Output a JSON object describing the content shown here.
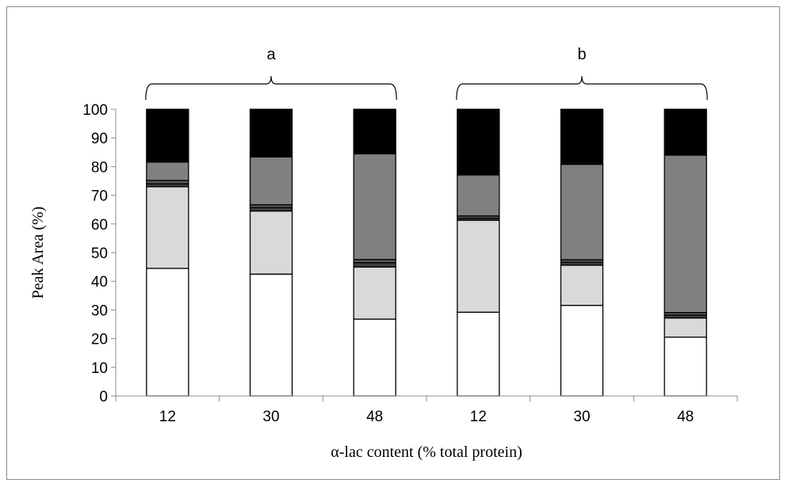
{
  "chart_data": {
    "type": "bar",
    "stacked": true,
    "categories": [
      "12",
      "30",
      "48",
      "12",
      "30",
      "48"
    ],
    "groups": [
      {
        "label": "a",
        "category_indices": [
          0,
          1,
          2
        ]
      },
      {
        "label": "b",
        "category_indices": [
          3,
          4,
          5
        ]
      }
    ],
    "series": [
      {
        "color": "#ffffff",
        "values": [
          44.5,
          42.5,
          26.8,
          29.2,
          31.6,
          20.5
        ]
      },
      {
        "color": "#d9d9d9",
        "values": [
          28.5,
          22.0,
          18.2,
          32.1,
          14.0,
          6.7
        ]
      },
      {
        "color": "#404040",
        "values": [
          1.0,
          1.2,
          1.5,
          0.7,
          1.0,
          1.0
        ]
      },
      {
        "color": "#595959",
        "values": [
          1.2,
          1.0,
          1.1,
          0.8,
          0.9,
          0.9
        ]
      },
      {
        "color": "#808080",
        "values": [
          6.4,
          16.7,
          36.9,
          14.3,
          33.3,
          54.9
        ]
      },
      {
        "color": "#000000",
        "values": [
          18.4,
          16.6,
          15.5,
          22.9,
          19.2,
          16.0
        ]
      }
    ],
    "xlabel": "α-lac content (% total protein)",
    "ylabel": "Peak Area (%)",
    "ylim": [
      0,
      100
    ],
    "yticks": [
      "0",
      "10",
      "20",
      "30",
      "40",
      "50",
      "60",
      "70",
      "80",
      "90",
      "100"
    ],
    "grid": false,
    "legend": "none"
  }
}
